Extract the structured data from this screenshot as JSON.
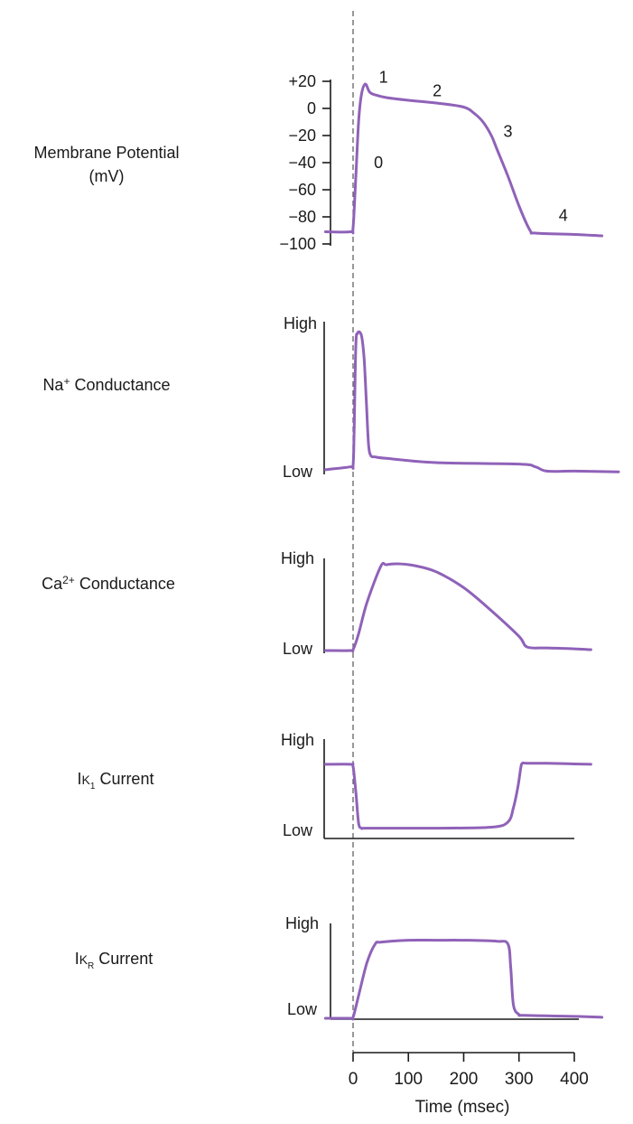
{
  "chart_data": {
    "type": "line",
    "trace_color": "#8f62b8",
    "shared_x": {
      "xlabel": "Time (msec)",
      "ticks": [
        0,
        100,
        200,
        300,
        400
      ],
      "xlim": [
        -50,
        450
      ]
    },
    "panels": [
      {
        "id": "membrane",
        "label_lines": [
          "Membrane Potential",
          "(mV)"
        ],
        "ylim": [
          -100,
          20
        ],
        "ytick_labels": [
          "+20",
          "0",
          "−20",
          "−40",
          "−60",
          "−80",
          "−100"
        ],
        "ytick_values": [
          20,
          0,
          -20,
          -40,
          -60,
          -80,
          -100
        ],
        "phase_labels": [
          {
            "text": "0",
            "x": 46,
            "y": -40
          },
          {
            "text": "1",
            "x": 55,
            "y": 23
          },
          {
            "text": "2",
            "x": 152,
            "y": 13
          },
          {
            "text": "3",
            "x": 280,
            "y": -17
          },
          {
            "text": "4",
            "x": 380,
            "y": -79
          }
        ],
        "x": [
          -50,
          -5,
          0,
          5,
          10,
          15,
          22,
          30,
          40,
          60,
          100,
          150,
          200,
          220,
          235,
          250,
          260,
          280,
          300,
          320,
          330,
          400,
          450
        ],
        "y": [
          -91,
          -91,
          -88,
          -50,
          -10,
          10,
          18,
          12,
          10,
          8,
          6,
          4,
          1,
          -4,
          -10,
          -20,
          -30,
          -50,
          -72,
          -90,
          -92,
          -93,
          -94
        ]
      },
      {
        "id": "na",
        "label": "Na",
        "label_sup": "+",
        "label_rest": " Conductance",
        "high_label": "High",
        "low_label": "Low",
        "ylim": [
          0,
          1
        ],
        "x": [
          -50,
          -5,
          0,
          2,
          5,
          8,
          12,
          16,
          20,
          24,
          28,
          32,
          40,
          60,
          150,
          300,
          330,
          350,
          400,
          480
        ],
        "y": [
          0.02,
          0.04,
          0.05,
          0.3,
          0.9,
          0.98,
          0.99,
          0.95,
          0.8,
          0.5,
          0.2,
          0.12,
          0.11,
          0.1,
          0.07,
          0.06,
          0.04,
          0.01,
          0.01,
          0.005
        ]
      },
      {
        "id": "ca",
        "label": "Ca",
        "label_sup": "2+",
        "label_rest": " Conductance",
        "high_label": "High",
        "low_label": "Low",
        "ylim": [
          0,
          1
        ],
        "x": [
          -50,
          -5,
          0,
          10,
          25,
          50,
          60,
          80,
          110,
          150,
          200,
          250,
          300,
          315,
          350,
          400,
          430
        ],
        "y": [
          0.01,
          0.01,
          0.02,
          0.2,
          0.55,
          0.96,
          0.98,
          0.99,
          0.97,
          0.9,
          0.72,
          0.46,
          0.17,
          0.05,
          0.04,
          0.03,
          0.02
        ]
      },
      {
        "id": "ik1",
        "label": "I",
        "label_sub_k": "K",
        "label_sub": "1",
        "label_rest": " Current",
        "high_label": "High",
        "low_label": "Low",
        "ylim": [
          0,
          1
        ],
        "x": [
          -50,
          -5,
          0,
          5,
          10,
          15,
          20,
          50,
          150,
          250,
          280,
          290,
          298,
          303,
          306,
          315,
          350,
          430
        ],
        "y": [
          0.72,
          0.72,
          0.7,
          0.45,
          0.15,
          0.1,
          0.1,
          0.1,
          0.1,
          0.11,
          0.16,
          0.3,
          0.5,
          0.68,
          0.73,
          0.73,
          0.73,
          0.72
        ]
      },
      {
        "id": "ikr",
        "label": "I",
        "label_sub_k": "K",
        "label_sub": "R",
        "label_rest": " Current",
        "high_label": "High",
        "low_label": "Low",
        "ylim": [
          0,
          1
        ],
        "x": [
          -50,
          -5,
          0,
          10,
          25,
          40,
          50,
          100,
          150,
          200,
          260,
          280,
          285,
          290,
          300,
          310,
          400,
          450
        ],
        "y": [
          0.01,
          0.01,
          0.02,
          0.25,
          0.6,
          0.8,
          0.82,
          0.84,
          0.84,
          0.84,
          0.83,
          0.8,
          0.55,
          0.15,
          0.05,
          0.04,
          0.03,
          0.02
        ]
      }
    ]
  }
}
